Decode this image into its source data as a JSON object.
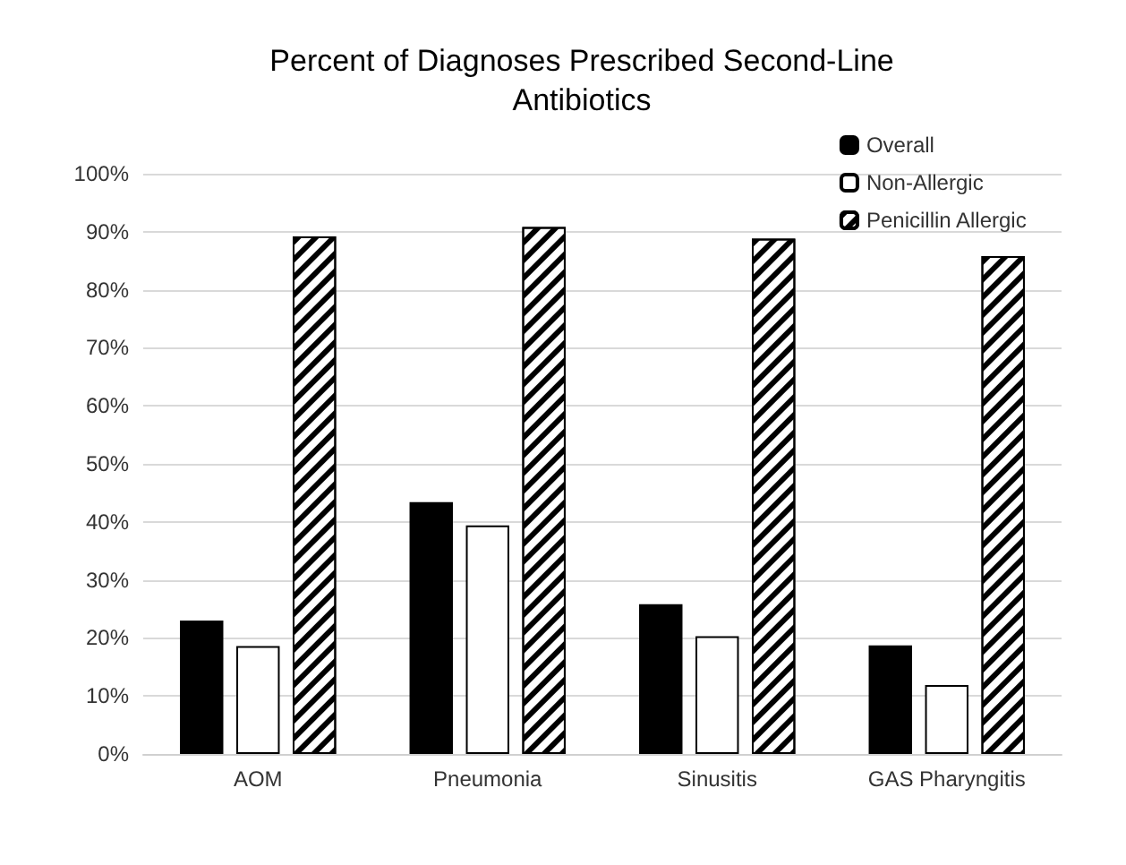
{
  "chart_data": {
    "type": "bar",
    "title": "Percent of Diagnoses Prescribed Second-Line\nAntibiotics",
    "categories": [
      "AOM",
      "Pneumonia",
      "Sinusitis",
      "GAS Pharyngitis"
    ],
    "series": [
      {
        "name": "Overall",
        "color": "#000000",
        "values": [
          23.0,
          43.4,
          25.8,
          18.7
        ]
      },
      {
        "name": "Non-Allergic",
        "color": "#ffffff",
        "values": [
          18.6,
          39.4,
          20.3,
          11.9
        ]
      },
      {
        "name": "Penicillin Allergic",
        "color": "#000000",
        "values": [
          89.2,
          90.8,
          88.8,
          85.8
        ]
      }
    ],
    "ylim": [
      0,
      100
    ],
    "yticks": [
      {
        "value": 0,
        "label": "0%"
      },
      {
        "value": 10,
        "label": "10%"
      },
      {
        "value": 20,
        "label": "20%"
      },
      {
        "value": 30,
        "label": "30%"
      },
      {
        "value": 40,
        "label": "40%"
      },
      {
        "value": 50,
        "label": "50%"
      },
      {
        "value": 60,
        "label": "60%"
      },
      {
        "value": 70,
        "label": "70%"
      },
      {
        "value": 80,
        "label": "80%"
      },
      {
        "value": 90,
        "label": "90%"
      },
      {
        "value": 100,
        "label": "100%"
      }
    ],
    "grid": "y",
    "legend": "top right"
  }
}
